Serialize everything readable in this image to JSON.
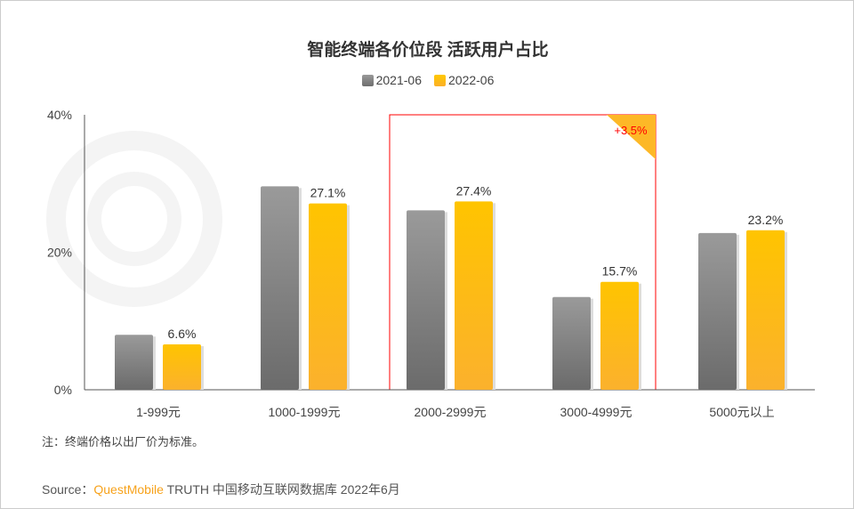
{
  "chart_data": {
    "type": "bar",
    "title": "智能终端各价位段 活跃用户占比",
    "categories": [
      "1-999元",
      "1000-1999元",
      "2000-2999元",
      "3000-4999元",
      "5000元以上"
    ],
    "series": [
      {
        "name": "2021-06",
        "values": [
          8.0,
          29.6,
          26.1,
          13.5,
          22.8
        ],
        "color": "#808080",
        "labels": [
          "",
          "",
          "",
          "",
          ""
        ]
      },
      {
        "name": "2022-06",
        "values": [
          6.6,
          27.1,
          27.4,
          15.7,
          23.2
        ],
        "color": "#ffc000",
        "labels": [
          "6.6%",
          "27.1%",
          "27.4%",
          "15.7%",
          "23.2%"
        ]
      }
    ],
    "ylim": [
      0,
      40
    ],
    "yticks": [
      "0%",
      "20%",
      "40%"
    ],
    "ytick_values": [
      0,
      20,
      40
    ],
    "legend": "top",
    "grid": false,
    "annotation": {
      "text": "+3.5%",
      "color": "#ff0000",
      "highlight_categories": [
        "2000-2999元",
        "3000-4999元"
      ],
      "box_color": "#ff0000",
      "corner_color": "#fdb827"
    }
  },
  "note": "注：终端价格以出厂价为标准。",
  "source": {
    "prefix": "Source：",
    "brand": "QuestMobile",
    "rest": " TRUTH 中国移动互联网数据库 2022年6月"
  },
  "watermark": "QUESTMOBILE"
}
